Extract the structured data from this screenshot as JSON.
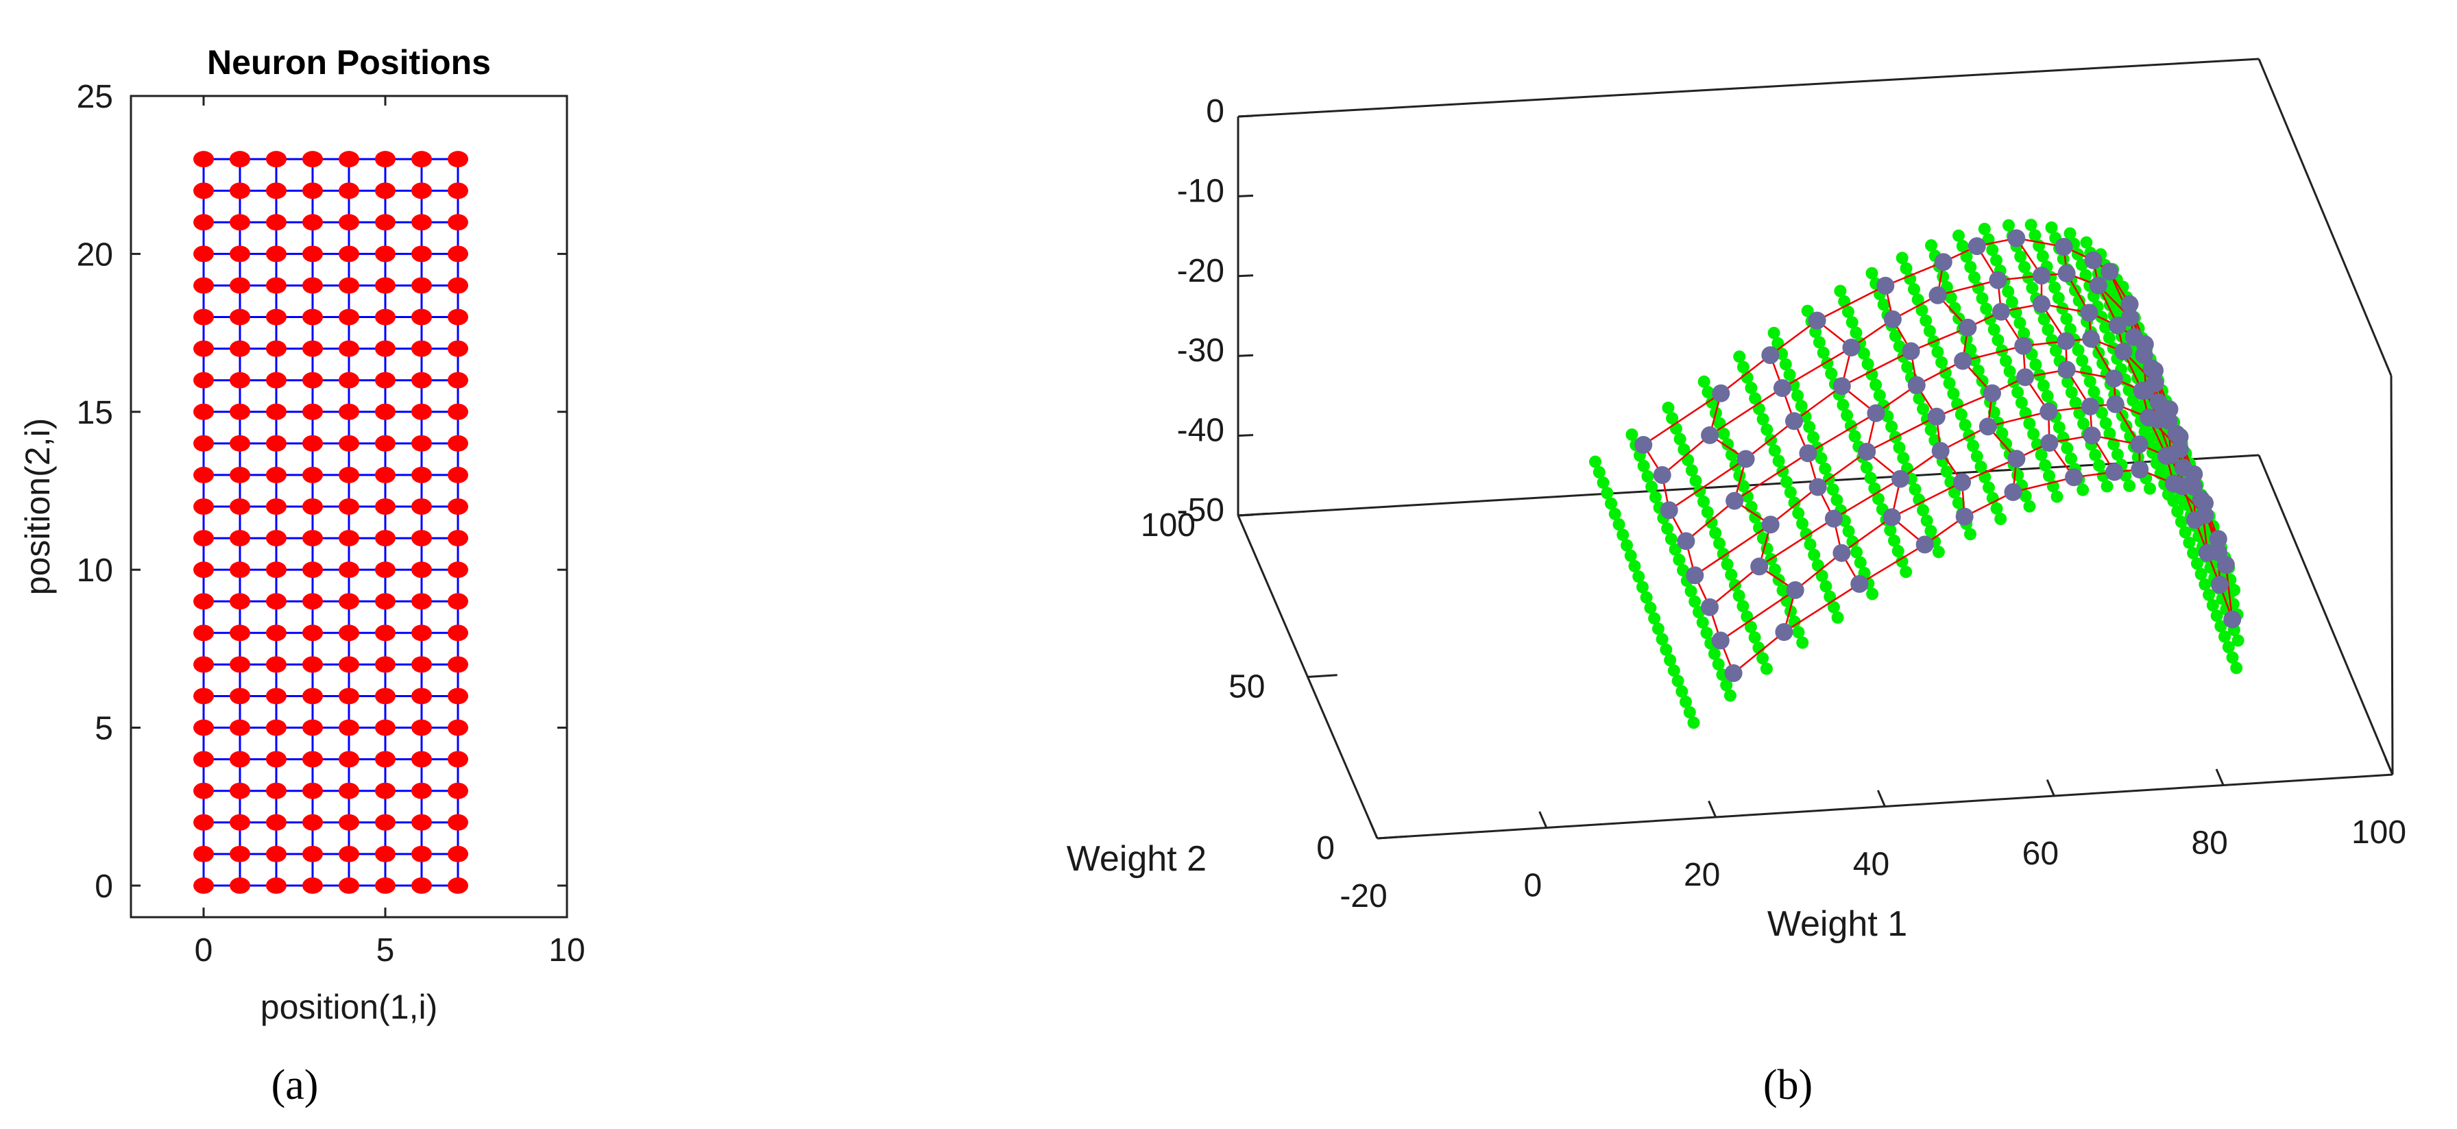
{
  "chart_data": [
    {
      "type": "scatter",
      "title": "Neuron Positions",
      "xlabel": "position(1,i)",
      "ylabel": "position(2,i)",
      "xlim": [
        -2,
        10
      ],
      "ylim": [
        -1,
        25
      ],
      "xticks": [
        "0",
        "5",
        "10"
      ],
      "yticks": [
        "0",
        "5",
        "10",
        "15",
        "20",
        "25"
      ],
      "grid_x": [
        0,
        1,
        2,
        3,
        4,
        5,
        6,
        7
      ],
      "grid_y": [
        0,
        1,
        2,
        3,
        4,
        5,
        6,
        7,
        8,
        9,
        10,
        11,
        12,
        13,
        14,
        15,
        16,
        17,
        18,
        19,
        20,
        21,
        22,
        23
      ],
      "point_color": "#ff0000",
      "link_color": "#0000ff",
      "caption": "(a)"
    },
    {
      "type": "scatter",
      "xlabel": "Weight 1",
      "ylabel": "Weight 2",
      "xlim": [
        -20,
        100
      ],
      "ylim": [
        0,
        100
      ],
      "zlim": [
        -50,
        0
      ],
      "xticks": [
        "-20",
        "0",
        "20",
        "40",
        "60",
        "80",
        "100"
      ],
      "yticks": [
        "0",
        "50",
        "100"
      ],
      "zticks": [
        "0",
        "-10",
        "-20",
        "-30",
        "-40",
        "-50"
      ],
      "data_color": "#00ee00",
      "neuron_color": "#6b6b9e",
      "link_color": "#ee0000",
      "caption": "(b)"
    }
  ]
}
